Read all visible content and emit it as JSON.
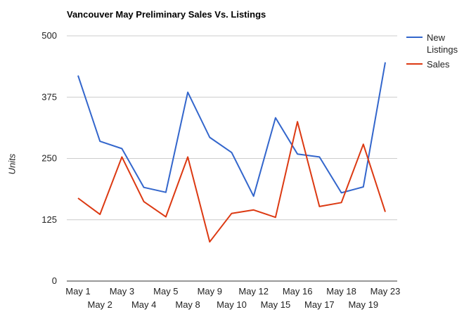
{
  "chart_data": {
    "type": "line",
    "title": "Vancouver May Preliminary Sales Vs. Listings",
    "xlabel": "",
    "ylabel": "Units",
    "ylim": [
      0,
      500
    ],
    "yticks": [
      0,
      125,
      250,
      375,
      500
    ],
    "grid": true,
    "legend_position": "right",
    "categories": [
      "May 1",
      "May 2",
      "May 3",
      "May 4",
      "May 5",
      "May 8",
      "May 9",
      "May 10",
      "May 12",
      "May 15",
      "May 16",
      "May 17",
      "May 18",
      "May 19",
      "May 23"
    ],
    "series": [
      {
        "name": "New Listings",
        "color": "#3366cc",
        "values": [
          419,
          285,
          270,
          191,
          181,
          385,
          293,
          262,
          173,
          333,
          259,
          253,
          180,
          192,
          446
        ]
      },
      {
        "name": "Sales",
        "color": "#dc3912",
        "values": [
          169,
          136,
          253,
          162,
          131,
          253,
          80,
          138,
          145,
          130,
          325,
          152,
          160,
          279,
          141
        ]
      }
    ]
  }
}
